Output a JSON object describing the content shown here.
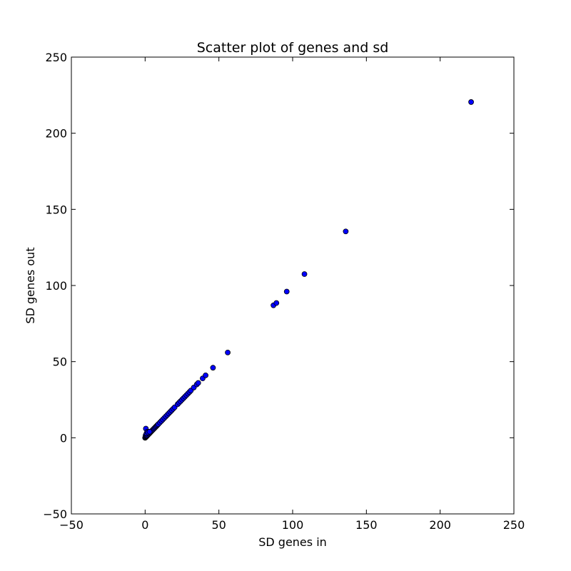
{
  "chart_data": {
    "type": "scatter",
    "title": "Scatter plot of genes and sd",
    "xlabel": "SD genes in",
    "ylabel": "SD genes out",
    "xlim": [
      -50,
      250
    ],
    "ylim": [
      -50,
      250
    ],
    "xticks": [
      -50,
      0,
      50,
      100,
      150,
      200,
      250
    ],
    "yticks": [
      -50,
      0,
      50,
      100,
      150,
      200,
      250
    ],
    "xtick_labels": [
      "−50",
      "0",
      "50",
      "100",
      "150",
      "200",
      "250"
    ],
    "ytick_labels": [
      "−50",
      "0",
      "50",
      "100",
      "150",
      "200",
      "250"
    ],
    "grid": false,
    "marker_color": "#0000ff",
    "marker_edge": "#000000",
    "x": [
      0,
      0.2,
      0.5,
      0.8,
      1,
      0.3,
      0.6,
      1.2,
      1.5,
      2,
      2.5,
      3,
      3.5,
      4,
      4.5,
      5,
      5.5,
      6,
      6.5,
      7,
      7.5,
      8,
      8.5,
      9,
      10,
      11,
      12,
      13,
      14,
      15,
      16,
      17,
      18,
      19,
      20,
      22,
      23,
      24,
      25,
      26,
      27,
      28,
      29,
      30,
      31,
      33,
      35,
      36,
      39,
      41,
      46,
      56,
      87,
      89,
      96,
      108,
      136,
      221,
      0.5,
      1,
      1.5,
      2,
      3
    ],
    "y": [
      0,
      0.2,
      0.5,
      0.8,
      1,
      1.5,
      2,
      1.2,
      1.5,
      2,
      2.5,
      3,
      3.5,
      4,
      4.5,
      5,
      5.5,
      6,
      6.5,
      7,
      7.5,
      8,
      8.5,
      9,
      10,
      11,
      12,
      13,
      14,
      15,
      16,
      17,
      18,
      19,
      20,
      22,
      23,
      24,
      25,
      26,
      27,
      28,
      29,
      30,
      31,
      33,
      35,
      36,
      39,
      41,
      46,
      56,
      87,
      88.5,
      96,
      107.5,
      135.5,
      220.5,
      6,
      3,
      4,
      3.5,
      4
    ]
  }
}
